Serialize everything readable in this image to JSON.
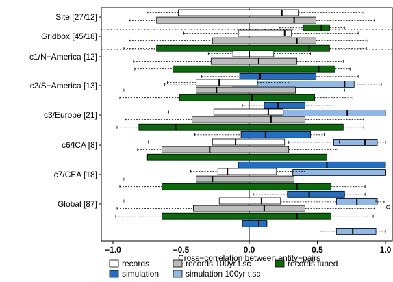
{
  "chart_data": {
    "type": "boxplot",
    "orientation": "horizontal",
    "xlabel": "Cross−correlation between entity−pairs",
    "xlim": [
      -1.0,
      1.0
    ],
    "xticks": [
      -1.0,
      -0.5,
      0.0,
      0.5,
      1.0
    ],
    "xtick_labels": [
      "−1.0",
      "−0.5",
      "0.0",
      "0.5",
      "1.0"
    ],
    "zero_line": 0.0,
    "legend_position": "bottom",
    "series": [
      {
        "name": "records",
        "color": "#ffffff"
      },
      {
        "name": "records 100yr t.sc",
        "color": "#bdbdbd"
      },
      {
        "name": "records tuned",
        "color": "#0a6b0a"
      },
      {
        "name": "simulation",
        "color": "#1f6fc8"
      },
      {
        "name": "simulation 100yr t.sc",
        "color": "#8fb8e8"
      }
    ],
    "groups": [
      {
        "label": "Site [27/12]",
        "boxes": [
          {
            "series": "records",
            "whisker_low": -0.75,
            "q1": -0.52,
            "median": 0.24,
            "q3": 0.36,
            "whisker_high": 0.84
          },
          {
            "series": "records 100yr t.sc",
            "whisker_low": -0.88,
            "q1": -0.68,
            "median": 0.33,
            "q3": 0.49,
            "whisker_high": 0.92
          },
          {
            "series": "records tuned",
            "whisker_low": 0.22,
            "q1": 0.4,
            "median": 0.53,
            "q3": 0.59,
            "whisker_high": 0.7
          }
        ]
      },
      {
        "label": "Gridbox [45/18]",
        "boxes": [
          {
            "series": "records",
            "whisker_low": -0.48,
            "q1": -0.08,
            "median": 0.26,
            "q3": 0.31,
            "whisker_high": 0.8
          },
          {
            "series": "records 100yr t.sc",
            "whisker_low": -0.88,
            "q1": -0.27,
            "median": 0.35,
            "q3": 0.49,
            "whisker_high": 0.87
          },
          {
            "series": "records tuned",
            "whisker_low": -0.92,
            "q1": -0.68,
            "median": 0.44,
            "q3": 0.59,
            "whisker_high": 0.86
          }
        ]
      },
      {
        "label": "c1/N−America [12]",
        "boxes": [
          {
            "series": "records",
            "whisker_low": -0.3,
            "q1": -0.12,
            "median": 0.0,
            "q3": 0.18,
            "whisker_high": 0.45
          },
          {
            "series": "records 100yr t.sc",
            "whisker_low": -0.85,
            "q1": -0.28,
            "median": 0.07,
            "q3": 0.35,
            "whisker_high": 0.69
          },
          {
            "series": "records tuned",
            "whisker_low": -0.84,
            "q1": -0.56,
            "median": 0.51,
            "q3": 0.63,
            "whisker_high": 0.74
          },
          {
            "series": "simulation",
            "whisker_low": -0.35,
            "q1": -0.07,
            "median": 0.08,
            "q3": 0.49,
            "whisker_high": 0.8
          },
          {
            "series": "simulation 100yr t.sc",
            "whisker_low": -0.62,
            "q1": -0.12,
            "median": 0.7,
            "q3": 0.77,
            "whisker_high": 0.97
          }
        ]
      },
      {
        "label": "c2/S−America [13]",
        "boxes": [
          {
            "series": "records",
            "whisker_low": -0.6,
            "q1": -0.39,
            "median": -0.22,
            "q3": 0.06,
            "whisker_high": 0.3
          },
          {
            "series": "records 100yr t.sc",
            "whisker_low": -0.92,
            "q1": -0.39,
            "median": -0.24,
            "q3": 0.34,
            "whisker_high": 0.7
          },
          {
            "series": "records tuned",
            "whisker_low": -0.95,
            "q1": -0.51,
            "median": 0.02,
            "q3": 0.48,
            "whisker_high": 0.76
          },
          {
            "series": "simulation",
            "whisker_low": -0.05,
            "q1": 0.11,
            "median": 0.21,
            "q3": 0.41,
            "whisker_high": 0.63
          },
          {
            "series": "simulation 100yr t.sc",
            "whisker_low": -0.03,
            "q1": 0.16,
            "median": 0.72,
            "q3": 1.0,
            "whisker_high": 1.0
          }
        ]
      },
      {
        "label": "c3/Europe [21]",
        "boxes": [
          {
            "series": "records",
            "whisker_low": -0.59,
            "q1": -0.26,
            "median": 0.14,
            "q3": 0.25,
            "whisker_high": 0.63
          },
          {
            "series": "records 100yr t.sc",
            "whisker_low": -0.91,
            "q1": -0.42,
            "median": 0.16,
            "q3": 0.41,
            "whisker_high": 0.84
          },
          {
            "series": "records tuned",
            "whisker_low": -0.97,
            "q1": -0.81,
            "median": -0.54,
            "q3": 0.69,
            "whisker_high": 0.84
          },
          {
            "series": "simulation",
            "whisker_low": -0.4,
            "q1": -0.06,
            "median": 0.12,
            "q3": 0.45,
            "whisker_high": 0.55
          },
          {
            "series": "simulation 100yr t.sc",
            "whisker_low": 0.29,
            "q1": 0.62,
            "median": 0.85,
            "q3": 0.94,
            "whisker_high": 1.0
          }
        ]
      },
      {
        "label": "c6/ICA [8]",
        "boxes": [
          {
            "series": "records",
            "whisker_low": -0.74,
            "q1": -0.27,
            "median": -0.1,
            "q3": 0.26,
            "whisker_high": 0.66
          },
          {
            "series": "records 100yr t.sc",
            "whisker_low": -0.82,
            "q1": -0.64,
            "median": -0.29,
            "q3": 0.29,
            "whisker_high": 0.65
          },
          {
            "series": "records tuned",
            "whisker_low": -0.75,
            "q1": -0.75,
            "median": -0.75,
            "q3": 0.57,
            "whisker_high": 0.57
          },
          {
            "series": "simulation",
            "whisker_low": -0.08,
            "q1": -0.08,
            "median": 0.57,
            "q3": 1.0,
            "whisker_high": 1.0
          },
          {
            "series": "simulation 100yr t.sc",
            "whisker_low": 0.32,
            "q1": 0.32,
            "median": 1.0,
            "q3": 1.0,
            "whisker_high": 1.0
          }
        ]
      },
      {
        "label": "c7/CEA [18]",
        "boxes": [
          {
            "series": "records",
            "whisker_low": -0.43,
            "q1": -0.23,
            "median": -0.16,
            "q3": 0.2,
            "whisker_high": 0.41
          },
          {
            "series": "records 100yr t.sc",
            "whisker_low": -0.92,
            "q1": -0.39,
            "median": -0.27,
            "q3": 0.33,
            "whisker_high": 0.63
          },
          {
            "series": "records tuned",
            "whisker_low": -0.95,
            "q1": -0.64,
            "median": 0.35,
            "q3": 0.6,
            "whisker_high": 0.85
          },
          {
            "series": "simulation",
            "whisker_low": 0.03,
            "q1": 0.28,
            "median": 0.44,
            "q3": 0.7,
            "whisker_high": 0.85
          },
          {
            "series": "simulation 100yr t.sc",
            "whisker_low": 0.21,
            "q1": 0.64,
            "median": 0.79,
            "q3": 0.94,
            "whisker_high": 0.99
          }
        ]
      },
      {
        "label": "Global [87]",
        "boxes": [
          {
            "series": "records",
            "whisker_low": -0.92,
            "q1": -0.22,
            "median": 0.09,
            "q3": 0.23,
            "whisker_high": 0.93
          },
          {
            "series": "records 100yr t.sc",
            "whisker_low": -0.97,
            "q1": -0.41,
            "median": 0.11,
            "q3": 0.41,
            "whisker_high": 0.92,
            "outliers": [
              1.02
            ]
          },
          {
            "series": "records tuned",
            "whisker_low": -0.98,
            "q1": -0.64,
            "median": 0.35,
            "q3": 0.6,
            "whisker_high": 0.91
          },
          {
            "series": "simulation",
            "whisker_low": -0.05,
            "q1": -0.05,
            "median": 0.07,
            "q3": 0.13,
            "whisker_high": 0.13
          },
          {
            "series": "simulation 100yr t.sc",
            "whisker_low": 0.52,
            "q1": 0.64,
            "median": 0.76,
            "q3": 0.93,
            "whisker_high": 1.0
          }
        ]
      }
    ]
  }
}
